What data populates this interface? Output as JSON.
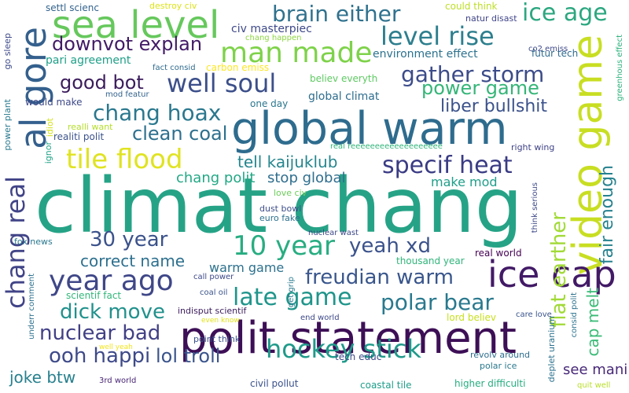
{
  "words": [
    {
      "text": "climat chang",
      "color": "#26a386"
    },
    {
      "text": "global warm",
      "color": "#2e6c8e"
    },
    {
      "text": "polit statement",
      "color": "#3d0f56"
    },
    {
      "text": "sea level",
      "color": "#66c85c"
    },
    {
      "text": "al gore",
      "color": "#34608d"
    },
    {
      "text": "video game",
      "color": "#c8de22"
    },
    {
      "text": "ice cap",
      "color": "#421a66"
    },
    {
      "text": "brain either",
      "color": "#30728e"
    },
    {
      "text": "ice age",
      "color": "#2ca780"
    },
    {
      "text": "man made",
      "color": "#7ed24a"
    },
    {
      "text": "downvot explan",
      "color": "#421a66"
    },
    {
      "text": "level rise",
      "color": "#2d7f8e"
    },
    {
      "text": "good bot",
      "color": "#3b1c5c"
    },
    {
      "text": "well soul",
      "color": "#3c4f8a"
    },
    {
      "text": "gather storm",
      "color": "#3c4c8a"
    },
    {
      "text": "power game",
      "color": "#35b578"
    },
    {
      "text": "chang hoax",
      "color": "#2a788e"
    },
    {
      "text": "clean coal",
      "color": "#2d708e"
    },
    {
      "text": "liber bullshit",
      "color": "#3b528b"
    },
    {
      "text": "tile flood",
      "color": "#e0e321"
    },
    {
      "text": "specif heat",
      "color": "#3a3b84"
    },
    {
      "text": "tell kaijuklub",
      "color": "#24868e"
    },
    {
      "text": "chang polit",
      "color": "#22a884"
    },
    {
      "text": "stop global",
      "color": "#2f6e8e"
    },
    {
      "text": "make mod",
      "color": "#1f9e89"
    },
    {
      "text": "fair enough",
      "color": "#26828e"
    },
    {
      "text": "chang real",
      "color": "#414487"
    },
    {
      "text": "10 year",
      "color": "#27ad81"
    },
    {
      "text": "30 year",
      "color": "#3b528b"
    },
    {
      "text": "yeah xd",
      "color": "#3b528b"
    },
    {
      "text": "flat earther",
      "color": "#a2da37"
    },
    {
      "text": "cap melt",
      "color": "#3aba76"
    },
    {
      "text": "correct name",
      "color": "#2d708e"
    },
    {
      "text": "year ago",
      "color": "#3f4788"
    },
    {
      "text": "freudian warm",
      "color": "#39568c"
    },
    {
      "text": "late game",
      "color": "#1f958b"
    },
    {
      "text": "polar bear",
      "color": "#29798e"
    },
    {
      "text": "warm game",
      "color": "#2c718e"
    },
    {
      "text": "dick move",
      "color": "#21918c"
    },
    {
      "text": "nuclear bad",
      "color": "#424086"
    },
    {
      "text": "hockey stick",
      "color": "#1f9a8a"
    },
    {
      "text": "ooh happi",
      "color": "#3e4a89"
    },
    {
      "text": "lol troll",
      "color": "#3a548c"
    },
    {
      "text": "joke btw",
      "color": "#27808e"
    },
    {
      "text": "see mani",
      "color": "#482979"
    },
    {
      "text": "settl scienc",
      "color": "#33638d"
    },
    {
      "text": "destroy civ",
      "color": "#dde318"
    },
    {
      "text": "could think",
      "color": "#bddf26"
    },
    {
      "text": "civ masterpiec",
      "color": "#3e4989"
    },
    {
      "text": "natur disast",
      "color": "#404588"
    },
    {
      "text": "futur tech",
      "color": "#2f6b8e"
    },
    {
      "text": "chang happen",
      "color": "#8fd744"
    },
    {
      "text": "co2 emiss",
      "color": "#3e4989"
    },
    {
      "text": "environment effect",
      "color": "#2c728e"
    },
    {
      "text": "fact consid",
      "color": "#2f6b8e"
    },
    {
      "text": "carbon emiss",
      "color": "#fde725"
    },
    {
      "text": "pari agreement",
      "color": "#1fa088"
    },
    {
      "text": "go sleep",
      "color": "#3e4a89"
    },
    {
      "text": "believ everyth",
      "color": "#5ec962"
    },
    {
      "text": "power plant",
      "color": "#29798e"
    },
    {
      "text": "mod featur",
      "color": "#33638d"
    },
    {
      "text": "would make",
      "color": "#3e4989"
    },
    {
      "text": "one day",
      "color": "#2a778e"
    },
    {
      "text": "global climat",
      "color": "#2e6e8e"
    },
    {
      "text": "greenhous effect",
      "color": "#2db27d"
    },
    {
      "text": "idiot",
      "color": "#d2e21b"
    },
    {
      "text": "realli want",
      "color": "#b5de2b"
    },
    {
      "text": "realiti polit",
      "color": "#3b528b"
    },
    {
      "text": "ignor",
      "color": "#20a386"
    },
    {
      "text": "real reeeeeeeeeeeeeeeeeee",
      "color": "#31b57b"
    },
    {
      "text": "right wing",
      "color": "#404387"
    },
    {
      "text": "love civ",
      "color": "#6ccd5a"
    },
    {
      "text": "dust bowl",
      "color": "#3d4e8a"
    },
    {
      "text": "euro fake",
      "color": "#2d708e"
    },
    {
      "text": "fox news",
      "color": "#2a788e"
    },
    {
      "text": "nuclear wast",
      "color": "#3e4989"
    },
    {
      "text": "think serious",
      "color": "#3e4989"
    },
    {
      "text": "thousand year",
      "color": "#31b57b"
    },
    {
      "text": "real world",
      "color": "#440154"
    },
    {
      "text": "call power",
      "color": "#3e4989"
    },
    {
      "text": "coal oil",
      "color": "#3a548c"
    },
    {
      "text": "scientif fact",
      "color": "#32b67a"
    },
    {
      "text": "indisput scientif",
      "color": "#3b1c5c"
    },
    {
      "text": "even know",
      "color": "#e2e418"
    },
    {
      "text": "get grip",
      "color": "#2a788e"
    },
    {
      "text": "end world",
      "color": "#3e4989"
    },
    {
      "text": "lord believ",
      "color": "#c8e020"
    },
    {
      "text": "care love",
      "color": "#3a548c"
    },
    {
      "text": "consid polit",
      "color": "#2c728e"
    },
    {
      "text": "underr comment",
      "color": "#2d708e"
    },
    {
      "text": "point think",
      "color": "#3b528b"
    },
    {
      "text": "well yeah",
      "color": "#f1e51d"
    },
    {
      "text": "tech educ",
      "color": "#3e4989"
    },
    {
      "text": "revolv around",
      "color": "#2e6e8e"
    },
    {
      "text": "deplet uranium",
      "color": "#2c718e"
    },
    {
      "text": "polar ice",
      "color": "#2a788e"
    },
    {
      "text": "3rd world",
      "color": "#482575"
    },
    {
      "text": "civil pollut",
      "color": "#3b528b"
    },
    {
      "text": "coastal tile",
      "color": "#1f9e89"
    },
    {
      "text": "higher difficulti",
      "color": "#27ad81"
    },
    {
      "text": "quit well",
      "color": "#b8de29"
    }
  ]
}
